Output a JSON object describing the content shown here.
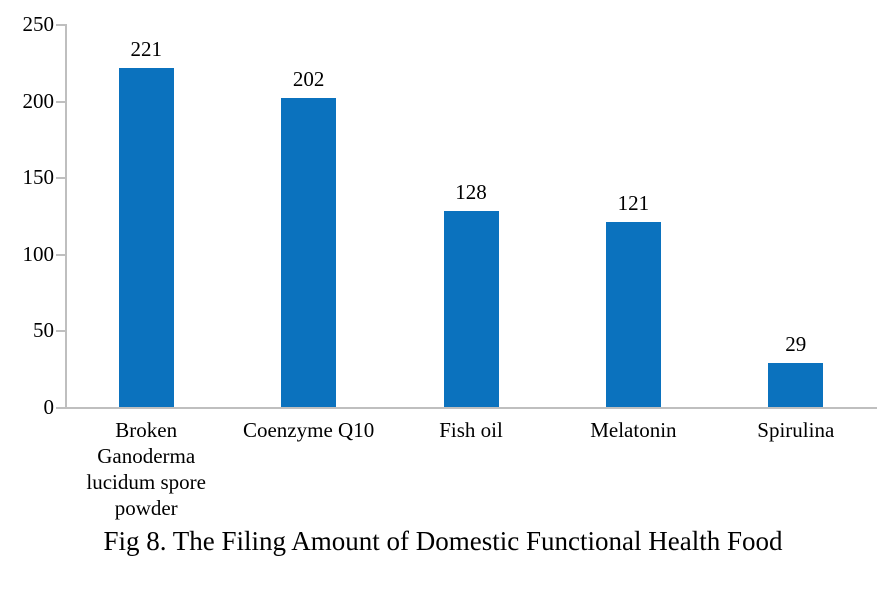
{
  "chart_data": {
    "type": "bar",
    "categories": [
      "Broken Ganoderma lucidum spore powder",
      "Coenzyme Q10",
      "Fish oil",
      "Melatonin",
      "Spirulina"
    ],
    "values": [
      221,
      202,
      128,
      121,
      29
    ],
    "data_labels": [
      "221",
      "202",
      "128",
      "121",
      "29"
    ],
    "title": "Fig 8. The Filing Amount of Domestic Functional Health Food",
    "xlabel": "",
    "ylabel": "",
    "ylim": [
      0,
      250
    ],
    "yticks": [
      "0",
      "50",
      "100",
      "150",
      "200",
      "250"
    ],
    "grid": false,
    "legend": "none",
    "bar_color": "#0b72be",
    "axis_color": "#bfbfbf",
    "text_color": "#000000"
  }
}
